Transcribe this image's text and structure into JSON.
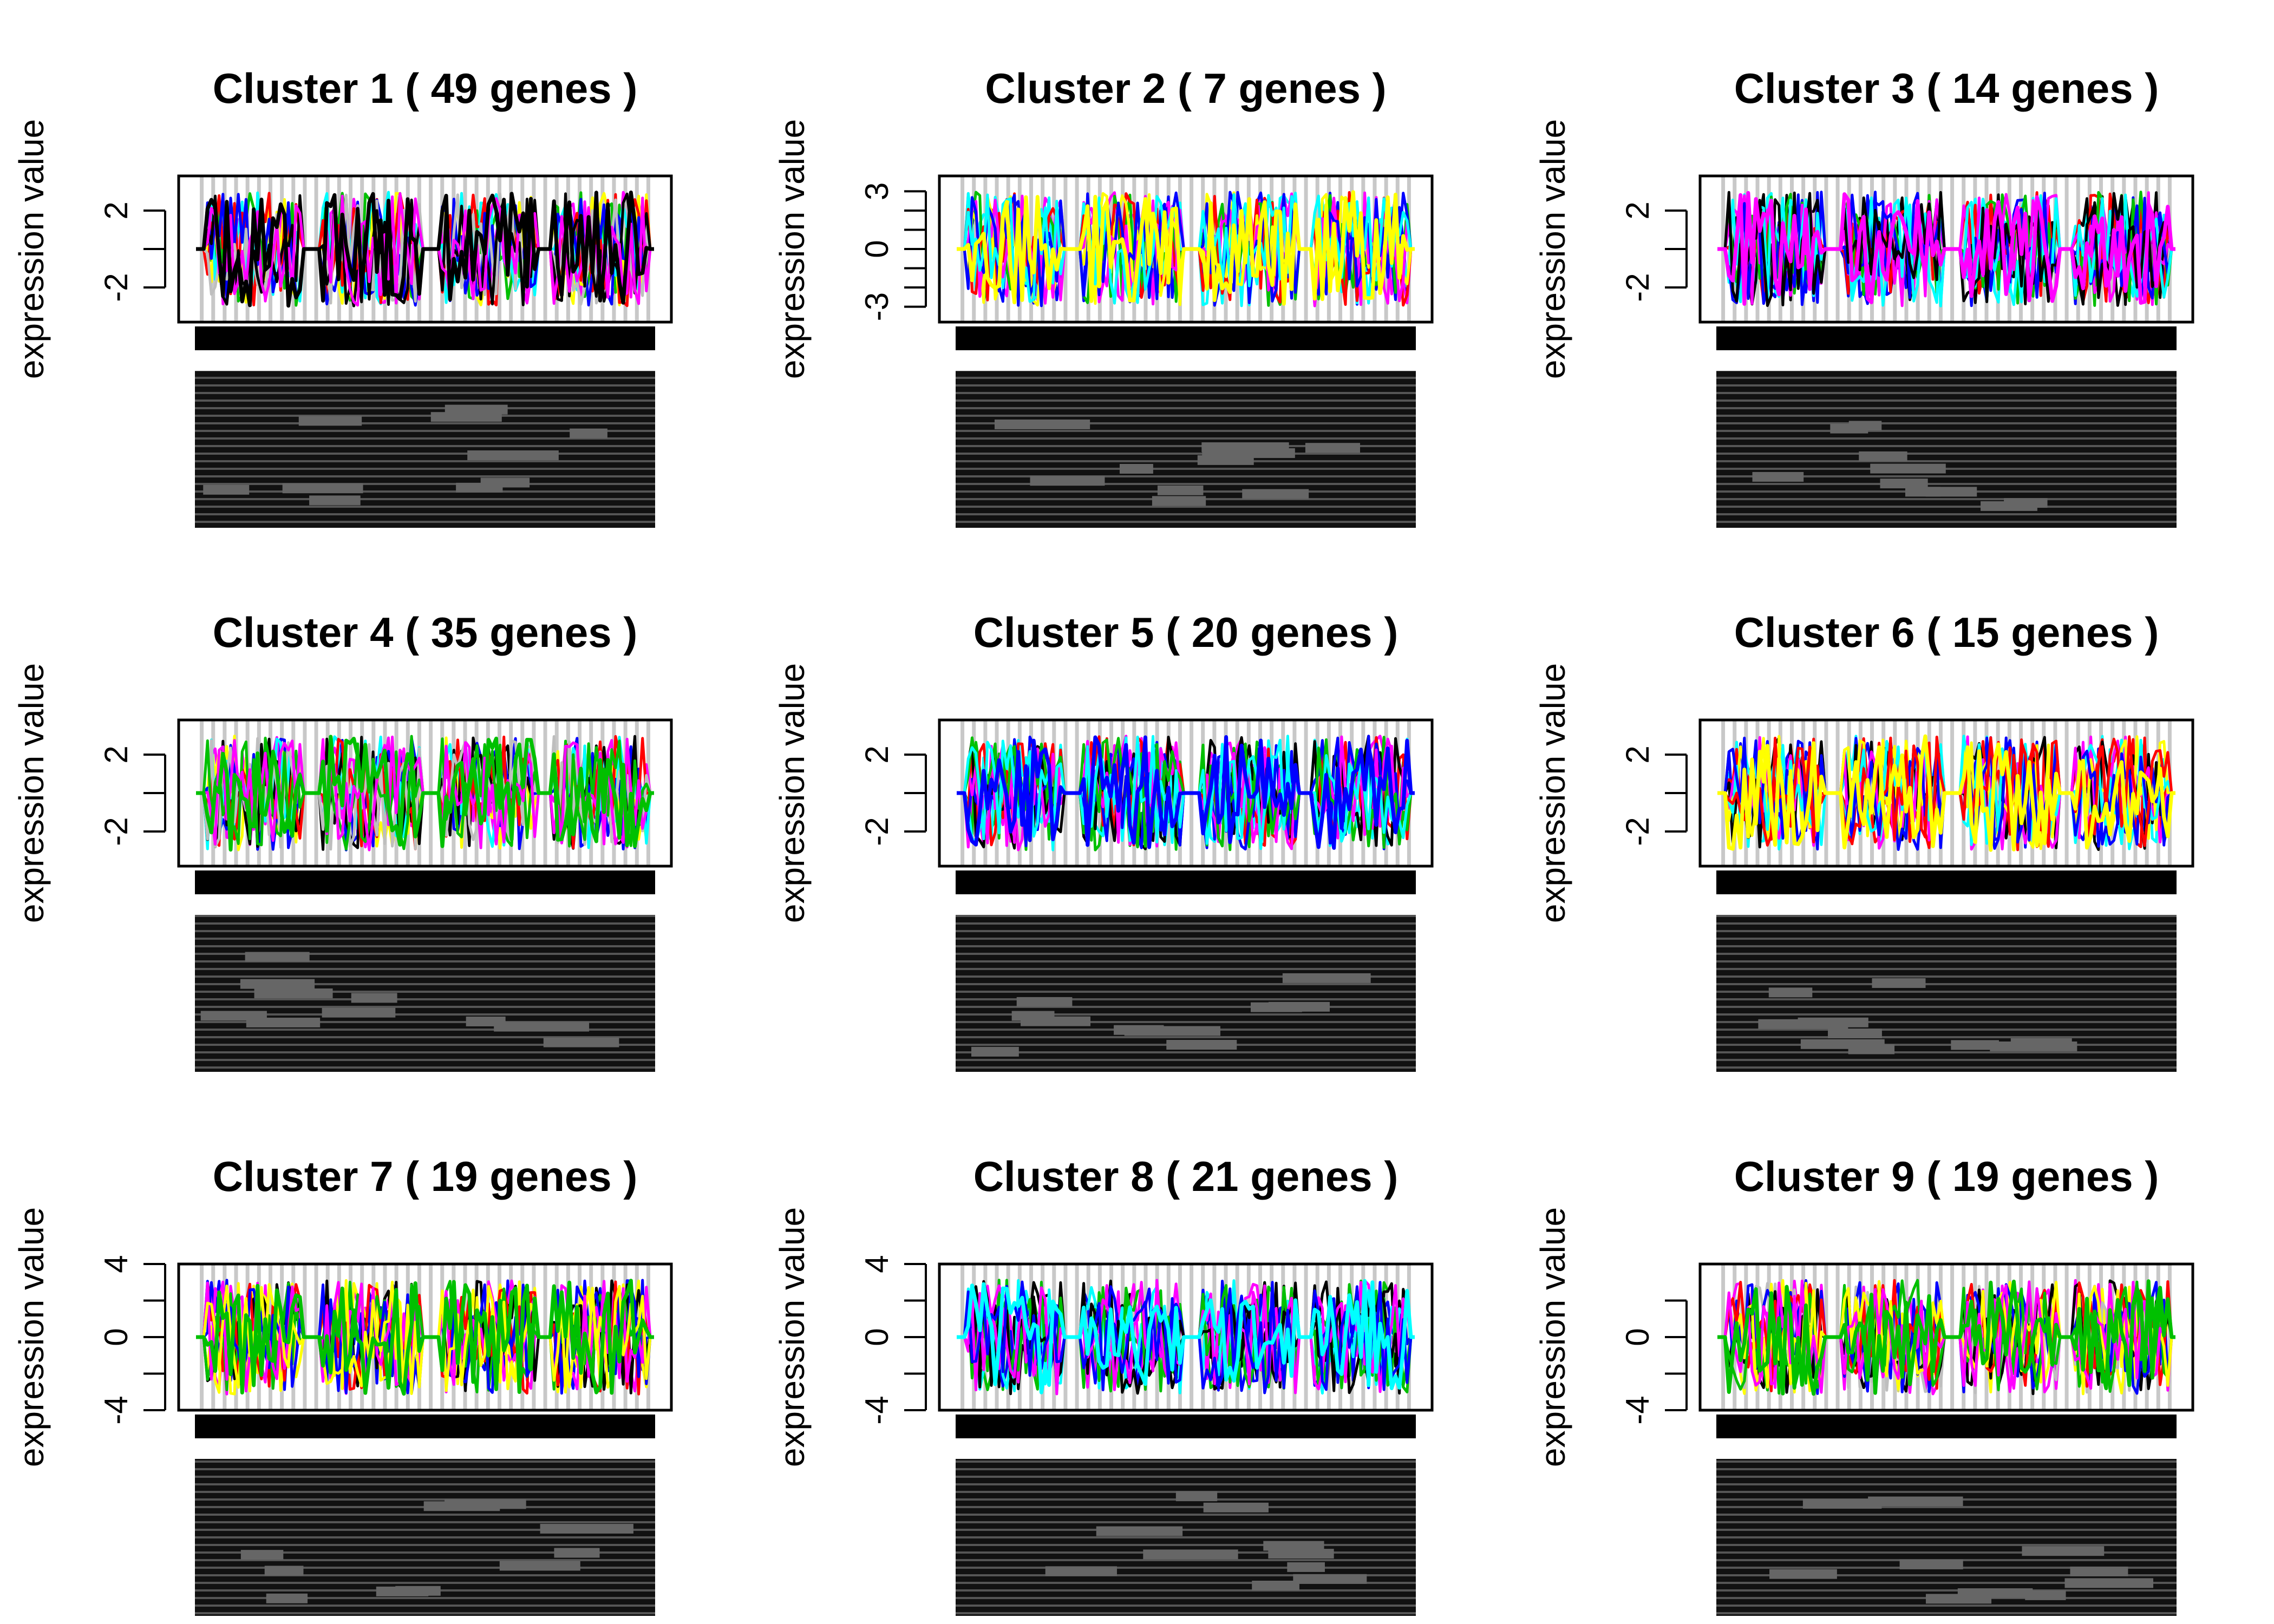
{
  "chart_data": [
    {
      "type": "line",
      "title": "Cluster  1 ( 49  genes )",
      "ylabel": "expression value",
      "ylim": [
        -3.8,
        3.8
      ],
      "yticks": [
        -2,
        0,
        2
      ],
      "ytick_labels": [
        "-2",
        "",
        "2"
      ],
      "series_colors": [
        "#ff00ff",
        "#00c000",
        "#ffff00",
        "#00ffff",
        "#ff0000",
        "#0000ff",
        "#bebebe",
        "#000000"
      ],
      "highlight_color": "#000000"
    },
    {
      "type": "line",
      "title": "Cluster  2 ( 7  genes )",
      "ylabel": "expression value",
      "ylim": [
        -3.8,
        3.8
      ],
      "yticks": [
        -3,
        -2,
        -1,
        0,
        1,
        2,
        3
      ],
      "ytick_labels": [
        "-3",
        "",
        "",
        "0",
        "",
        "",
        "3"
      ],
      "series_colors": [
        "#ff00ff",
        "#0000ff",
        "#00ffff",
        "#00c000",
        "#ff0000",
        "#ffff00"
      ],
      "highlight_color": "#ffff00"
    },
    {
      "type": "line",
      "title": "Cluster  3 ( 14  genes )",
      "ylabel": "expression value",
      "ylim": [
        -3.8,
        3.8
      ],
      "yticks": [
        -2,
        0,
        2
      ],
      "ytick_labels": [
        "-2",
        "",
        "2"
      ],
      "series_colors": [
        "#0000ff",
        "#00ffff",
        "#000000",
        "#ff0000",
        "#00c000",
        "#ff00ff"
      ],
      "highlight_color": "#ff00ff"
    },
    {
      "type": "line",
      "title": "Cluster  4 ( 35  genes )",
      "ylabel": "expression value",
      "ylim": [
        -3.8,
        3.8
      ],
      "yticks": [
        -2,
        0,
        2
      ],
      "ytick_labels": [
        "-2",
        "",
        "2"
      ],
      "series_colors": [
        "#ff00ff",
        "#ffff00",
        "#0000ff",
        "#00ffff",
        "#000000",
        "#ff0000",
        "#bebebe",
        "#00c000"
      ],
      "highlight_color": "#00c000"
    },
    {
      "type": "line",
      "title": "Cluster  5 ( 20  genes )",
      "ylabel": "expression value",
      "ylim": [
        -3.8,
        3.8
      ],
      "yticks": [
        -2,
        0,
        2
      ],
      "ytick_labels": [
        "-2",
        "",
        "2"
      ],
      "series_colors": [
        "#ff00ff",
        "#00c000",
        "#00ffff",
        "#ff0000",
        "#000000",
        "#0000ff"
      ],
      "highlight_color": "#0000ff"
    },
    {
      "type": "line",
      "title": "Cluster  6 ( 15  genes )",
      "ylabel": "expression value",
      "ylim": [
        -3.8,
        3.8
      ],
      "yticks": [
        -2,
        0,
        2
      ],
      "ytick_labels": [
        "-2",
        "",
        "2"
      ],
      "series_colors": [
        "#00ffff",
        "#0000ff",
        "#ff0000",
        "#000000",
        "#ff00ff",
        "#ffff00"
      ],
      "highlight_color": "#ffff00"
    },
    {
      "type": "line",
      "title": "Cluster  7 ( 19  genes )",
      "ylabel": "expression value",
      "ylim": [
        -4,
        4
      ],
      "yticks": [
        -4,
        -2,
        0,
        2,
        4
      ],
      "ytick_labels": [
        "-4",
        "",
        "0",
        "",
        "4"
      ],
      "series_colors": [
        "#0000ff",
        "#ff00ff",
        "#ffff00",
        "#000000",
        "#ff0000",
        "#00c000"
      ],
      "highlight_color": "#00c000"
    },
    {
      "type": "line",
      "title": "Cluster  8 ( 21  genes )",
      "ylabel": "expression value",
      "ylim": [
        -4,
        4
      ],
      "yticks": [
        -4,
        -2,
        0,
        2,
        4
      ],
      "ytick_labels": [
        "-4",
        "",
        "0",
        "",
        "4"
      ],
      "series_colors": [
        "#00c000",
        "#000000",
        "#ff00ff",
        "#0000ff",
        "#00ffff"
      ],
      "highlight_color": "#00ffff"
    },
    {
      "type": "line",
      "title": "Cluster  9 ( 19  genes )",
      "ylabel": "expression value",
      "ylim": [
        -4,
        4
      ],
      "yticks": [
        -4,
        -2,
        0,
        2
      ],
      "ytick_labels": [
        "-4",
        "",
        "0",
        ""
      ],
      "series_colors": [
        "#ffff00",
        "#ff00ff",
        "#bebebe",
        "#000000",
        "#0000ff",
        "#ff0000",
        "#00c000"
      ],
      "highlight_color": "#00c000"
    }
  ]
}
